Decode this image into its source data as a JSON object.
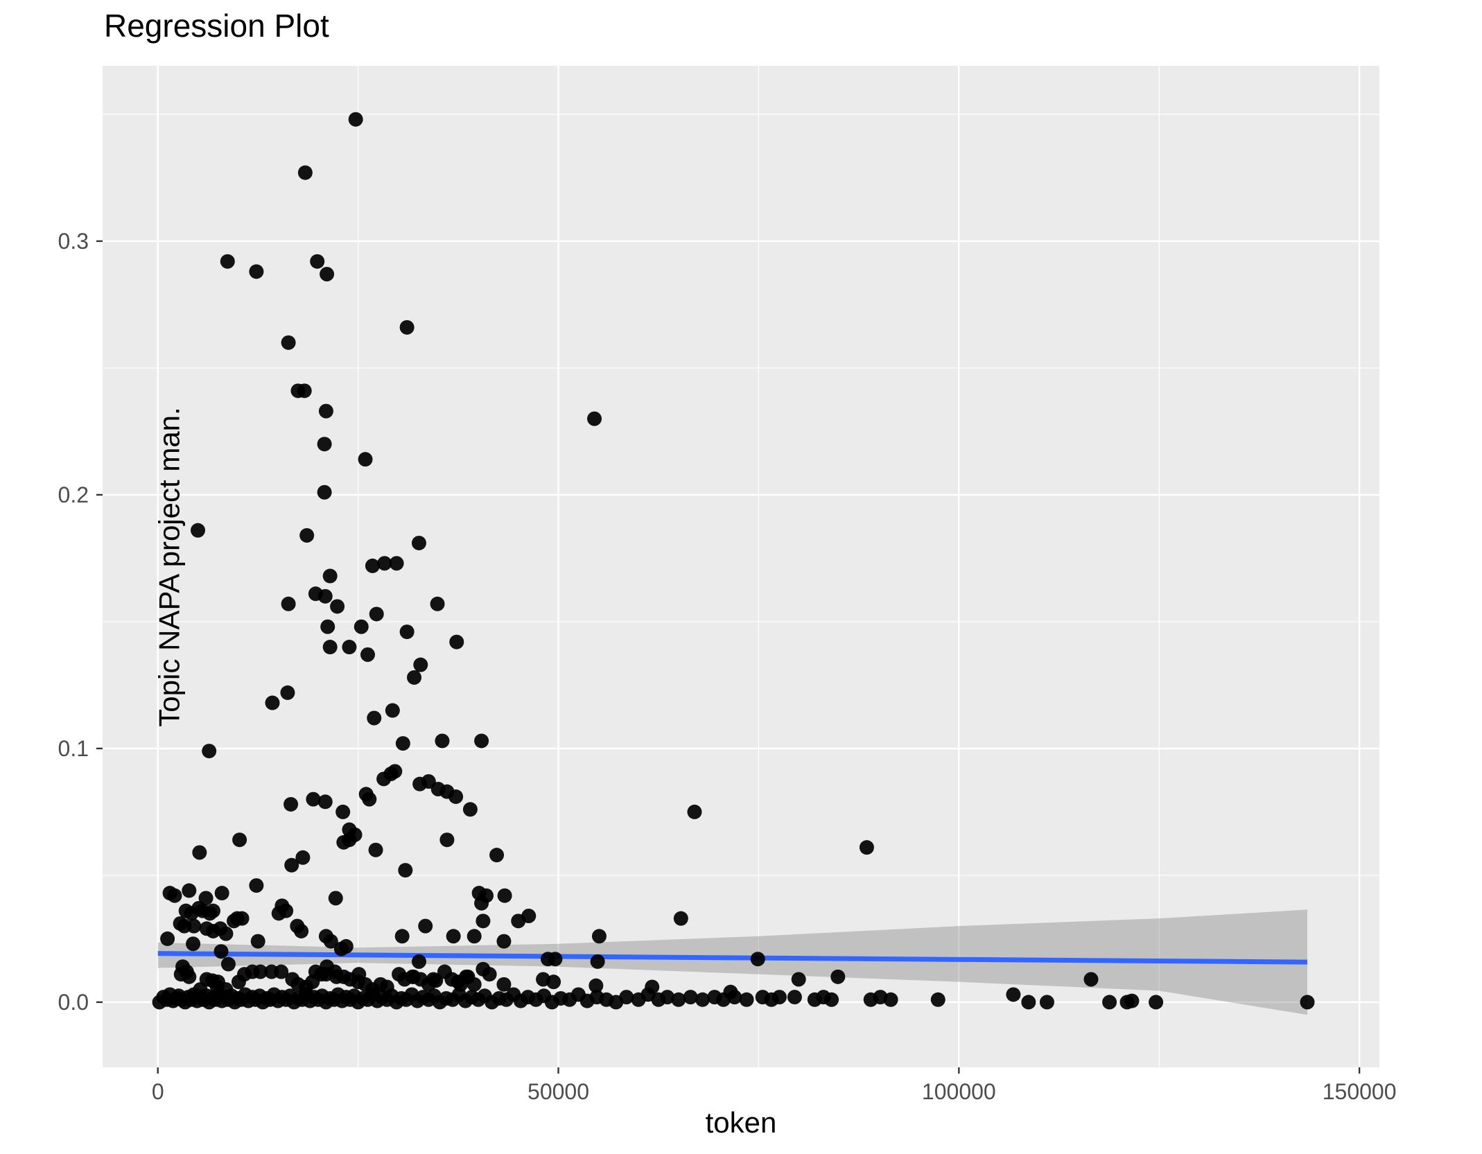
{
  "page": {
    "title": "Regression Plot"
  },
  "chart_data": {
    "type": "scatter",
    "title": "Regression Plot",
    "xlabel": "token",
    "ylabel": "Topic NAPA project man.",
    "x_tick_values": [
      0,
      50000,
      100000,
      150000
    ],
    "x_tick_labels": [
      "0",
      "50000",
      "100000",
      "150000"
    ],
    "x_minor_ticks": [
      25000,
      75000,
      125000
    ],
    "y_tick_values": [
      0.0,
      0.1,
      0.2,
      0.3
    ],
    "y_tick_labels": [
      "0.0",
      "0.1",
      "0.2",
      "0.3"
    ],
    "y_minor_ticks": [
      0.05,
      0.15,
      0.25,
      0.35
    ],
    "xlim": [
      -6900,
      152500
    ],
    "ylim": [
      -0.0257,
      0.3691
    ],
    "grid": true,
    "legend_position": "none",
    "colors": {
      "panel_background": "#EBEBEB",
      "grid_major": "#FFFFFF",
      "grid_minor": "#F5F5F5",
      "point": "#000000",
      "smooth_line": "#3366FF",
      "confidence_band": "rgba(125,125,125,0.38)",
      "tick_label": "#4D4D4D",
      "tick_mark": "#333333",
      "text": "#000000"
    },
    "regression_line": {
      "x": [
        0,
        143500
      ],
      "y": [
        0.0192,
        0.0158
      ]
    },
    "confidence_band": {
      "x": [
        0,
        25000,
        50000,
        75000,
        100000,
        125000,
        143500
      ],
      "upper": [
        0.0235,
        0.0215,
        0.023,
        0.026,
        0.03,
        0.033,
        0.0365
      ],
      "lower": [
        0.0135,
        0.0155,
        0.014,
        0.011,
        0.008,
        0.0045,
        -0.005
      ]
    },
    "points": [
      [
        24700,
        0.348
      ],
      [
        18400,
        0.327
      ],
      [
        8700,
        0.292
      ],
      [
        19900,
        0.292
      ],
      [
        12300,
        0.288
      ],
      [
        21100,
        0.287
      ],
      [
        31100,
        0.266
      ],
      [
        16300,
        0.26
      ],
      [
        17500,
        0.241
      ],
      [
        18300,
        0.241
      ],
      [
        21000,
        0.233
      ],
      [
        54500,
        0.23
      ],
      [
        20800,
        0.22
      ],
      [
        25900,
        0.214
      ],
      [
        20800,
        0.201
      ],
      [
        5000,
        0.186
      ],
      [
        18600,
        0.184
      ],
      [
        32600,
        0.181
      ],
      [
        28300,
        0.173
      ],
      [
        29800,
        0.173
      ],
      [
        26800,
        0.172
      ],
      [
        21500,
        0.168
      ],
      [
        19700,
        0.161
      ],
      [
        20900,
        0.16
      ],
      [
        16300,
        0.157
      ],
      [
        34900,
        0.157
      ],
      [
        22400,
        0.156
      ],
      [
        27300,
        0.153
      ],
      [
        21200,
        0.148
      ],
      [
        25400,
        0.148
      ],
      [
        31100,
        0.146
      ],
      [
        37300,
        0.142
      ],
      [
        23900,
        0.14
      ],
      [
        21500,
        0.14
      ],
      [
        26200,
        0.137
      ],
      [
        32800,
        0.133
      ],
      [
        32000,
        0.128
      ],
      [
        16200,
        0.122
      ],
      [
        14300,
        0.118
      ],
      [
        29300,
        0.115
      ],
      [
        27000,
        0.112
      ],
      [
        35500,
        0.103
      ],
      [
        30600,
        0.102
      ],
      [
        40400,
        0.103
      ],
      [
        6400,
        0.099
      ],
      [
        29600,
        0.091
      ],
      [
        29100,
        0.09
      ],
      [
        28200,
        0.088
      ],
      [
        33800,
        0.087
      ],
      [
        32700,
        0.086
      ],
      [
        35000,
        0.084
      ],
      [
        36100,
        0.083
      ],
      [
        37200,
        0.081
      ],
      [
        26000,
        0.082
      ],
      [
        26400,
        0.08
      ],
      [
        19400,
        0.08
      ],
      [
        20900,
        0.079
      ],
      [
        16600,
        0.078
      ],
      [
        39000,
        0.076
      ],
      [
        23100,
        0.075
      ],
      [
        67000,
        0.075
      ],
      [
        23900,
        0.068
      ],
      [
        24600,
        0.066
      ],
      [
        23900,
        0.064
      ],
      [
        23200,
        0.063
      ],
      [
        10200,
        0.064
      ],
      [
        36100,
        0.064
      ],
      [
        5200,
        0.059
      ],
      [
        27200,
        0.06
      ],
      [
        88500,
        0.061
      ],
      [
        42300,
        0.058
      ],
      [
        18100,
        0.057
      ],
      [
        16700,
        0.054
      ],
      [
        30900,
        0.052
      ],
      [
        1500,
        0.043
      ],
      [
        2100,
        0.042
      ],
      [
        3900,
        0.044
      ],
      [
        6000,
        0.041
      ],
      [
        8000,
        0.043
      ],
      [
        12300,
        0.046
      ],
      [
        3500,
        0.036
      ],
      [
        4200,
        0.035
      ],
      [
        5100,
        0.037
      ],
      [
        5600,
        0.036
      ],
      [
        6500,
        0.035
      ],
      [
        6900,
        0.036
      ],
      [
        9500,
        0.032
      ],
      [
        9900,
        0.033
      ],
      [
        10500,
        0.033
      ],
      [
        2800,
        0.031
      ],
      [
        3300,
        0.03
      ],
      [
        4500,
        0.03
      ],
      [
        6100,
        0.029
      ],
      [
        6900,
        0.028
      ],
      [
        7800,
        0.029
      ],
      [
        8500,
        0.027
      ],
      [
        15500,
        0.038
      ],
      [
        16000,
        0.036
      ],
      [
        15100,
        0.035
      ],
      [
        17400,
        0.03
      ],
      [
        17900,
        0.028
      ],
      [
        22200,
        0.041
      ],
      [
        40100,
        0.043
      ],
      [
        40400,
        0.039
      ],
      [
        41000,
        0.042
      ],
      [
        43300,
        0.042
      ],
      [
        45000,
        0.032
      ],
      [
        46300,
        0.034
      ],
      [
        65300,
        0.033
      ],
      [
        33400,
        0.03
      ],
      [
        40600,
        0.032
      ],
      [
        1200,
        0.025
      ],
      [
        4400,
        0.023
      ],
      [
        7900,
        0.02
      ],
      [
        12500,
        0.024
      ],
      [
        21000,
        0.026
      ],
      [
        21600,
        0.024
      ],
      [
        22900,
        0.021
      ],
      [
        23500,
        0.022
      ],
      [
        30500,
        0.026
      ],
      [
        36900,
        0.026
      ],
      [
        39500,
        0.026
      ],
      [
        32600,
        0.016
      ],
      [
        8800,
        0.015
      ],
      [
        43200,
        0.024
      ],
      [
        48700,
        0.017
      ],
      [
        49600,
        0.017
      ],
      [
        55100,
        0.026
      ],
      [
        54900,
        0.016
      ],
      [
        74900,
        0.017
      ],
      [
        2900,
        0.011
      ],
      [
        3100,
        0.014
      ],
      [
        3600,
        0.012
      ],
      [
        3900,
        0.01
      ],
      [
        5300,
        0.005
      ],
      [
        6100,
        0.009
      ],
      [
        6800,
        0.0085
      ],
      [
        7400,
        0.006
      ],
      [
        7500,
        0.008
      ],
      [
        8500,
        0.005
      ],
      [
        10100,
        0.008
      ],
      [
        10800,
        0.011
      ],
      [
        11800,
        0.012
      ],
      [
        12800,
        0.012
      ],
      [
        14200,
        0.012
      ],
      [
        15400,
        0.012
      ],
      [
        16800,
        0.009
      ],
      [
        17500,
        0.007
      ],
      [
        18500,
        0.006
      ],
      [
        19300,
        0.008
      ],
      [
        19700,
        0.012
      ],
      [
        20400,
        0.011
      ],
      [
        21000,
        0.011
      ],
      [
        21100,
        0.014
      ],
      [
        22100,
        0.012
      ],
      [
        22300,
        0.01
      ],
      [
        23200,
        0.01
      ],
      [
        24000,
        0.009
      ],
      [
        25000,
        0.008
      ],
      [
        25100,
        0.011
      ],
      [
        25900,
        0.007
      ],
      [
        26800,
        0.005
      ],
      [
        27800,
        0.007
      ],
      [
        28600,
        0.006
      ],
      [
        30100,
        0.011
      ],
      [
        30800,
        0.009
      ],
      [
        31800,
        0.01
      ],
      [
        31900,
        0.01
      ],
      [
        32800,
        0.009
      ],
      [
        33800,
        0.007
      ],
      [
        34400,
        0.009
      ],
      [
        34700,
        0.0085
      ],
      [
        35800,
        0.012
      ],
      [
        36700,
        0.009
      ],
      [
        37500,
        0.008
      ],
      [
        37800,
        0.007
      ],
      [
        38500,
        0.01
      ],
      [
        38700,
        0.01
      ],
      [
        39500,
        0.007
      ],
      [
        40600,
        0.013
      ],
      [
        41400,
        0.011
      ],
      [
        43200,
        0.007
      ],
      [
        48100,
        0.009
      ],
      [
        49400,
        0.008
      ],
      [
        54700,
        0.0065
      ],
      [
        61700,
        0.006
      ],
      [
        71500,
        0.004
      ],
      [
        80000,
        0.009
      ],
      [
        84900,
        0.01
      ],
      [
        116500,
        0.009
      ],
      [
        106800,
        0.003
      ],
      [
        58500,
        0.002
      ],
      [
        60000,
        0.001
      ],
      [
        61200,
        0.003
      ],
      [
        62500,
        0.001
      ],
      [
        63600,
        0.002
      ],
      [
        65000,
        0.001
      ],
      [
        66500,
        0.002
      ],
      [
        68000,
        0.001
      ],
      [
        69500,
        0.002
      ],
      [
        70600,
        0.001
      ],
      [
        72000,
        0.002
      ],
      [
        73500,
        0.001
      ],
      [
        75500,
        0.002
      ],
      [
        76600,
        0.001
      ],
      [
        77600,
        0.002
      ],
      [
        79500,
        0.002
      ],
      [
        82000,
        0.001
      ],
      [
        83100,
        0.002
      ],
      [
        84100,
        0.001
      ],
      [
        89000,
        0.001
      ],
      [
        90200,
        0.002
      ],
      [
        91500,
        0.001
      ],
      [
        97400,
        0.001
      ],
      [
        108700,
        0.0
      ],
      [
        111000,
        0.0
      ],
      [
        118800,
        0.0
      ],
      [
        121000,
        0.0
      ],
      [
        121600,
        0.0005
      ],
      [
        124600,
        0.0
      ],
      [
        143500,
        0.0
      ],
      [
        200,
        0.0
      ],
      [
        700,
        0.002
      ],
      [
        1100,
        0.001
      ],
      [
        1500,
        0.003
      ],
      [
        1900,
        0.0005
      ],
      [
        2300,
        0.0015
      ],
      [
        2600,
        0.0025
      ],
      [
        3000,
        0.001
      ],
      [
        3400,
        0.0
      ],
      [
        3800,
        0.002
      ],
      [
        4100,
        0.001
      ],
      [
        4500,
        0.003
      ],
      [
        4900,
        0.0005
      ],
      [
        5300,
        0.002
      ],
      [
        5700,
        0.001
      ],
      [
        6100,
        0.0025
      ],
      [
        6400,
        0.0
      ],
      [
        6800,
        0.0015
      ],
      [
        7200,
        0.001
      ],
      [
        7600,
        0.003
      ],
      [
        8000,
        0.0005
      ],
      [
        8400,
        0.002
      ],
      [
        8800,
        0.001
      ],
      [
        9200,
        0.0025
      ],
      [
        9600,
        0.0
      ],
      [
        10000,
        0.0015
      ],
      [
        10400,
        0.001
      ],
      [
        10900,
        0.003
      ],
      [
        11300,
        0.0005
      ],
      [
        11800,
        0.002
      ],
      [
        12200,
        0.001
      ],
      [
        12700,
        0.0025
      ],
      [
        13100,
        0.0
      ],
      [
        13600,
        0.0015
      ],
      [
        14000,
        0.001
      ],
      [
        14500,
        0.003
      ],
      [
        15000,
        0.0005
      ],
      [
        15500,
        0.002
      ],
      [
        16000,
        0.001
      ],
      [
        16500,
        0.0025
      ],
      [
        17000,
        0.0
      ],
      [
        17500,
        0.0015
      ],
      [
        18000,
        0.001
      ],
      [
        18500,
        0.003
      ],
      [
        19000,
        0.0005
      ],
      [
        19500,
        0.002
      ],
      [
        20000,
        0.001
      ],
      [
        20500,
        0.0025
      ],
      [
        21000,
        0.0
      ],
      [
        21500,
        0.0015
      ],
      [
        22000,
        0.001
      ],
      [
        22500,
        0.003
      ],
      [
        23000,
        0.0005
      ],
      [
        23500,
        0.002
      ],
      [
        24000,
        0.001
      ],
      [
        24500,
        0.0025
      ],
      [
        25000,
        0.0
      ],
      [
        25600,
        0.0015
      ],
      [
        26200,
        0.001
      ],
      [
        26800,
        0.003
      ],
      [
        27400,
        0.0005
      ],
      [
        28000,
        0.002
      ],
      [
        28600,
        0.001
      ],
      [
        29200,
        0.0025
      ],
      [
        29800,
        0.0
      ],
      [
        30400,
        0.0015
      ],
      [
        31000,
        0.001
      ],
      [
        31700,
        0.003
      ],
      [
        32400,
        0.0005
      ],
      [
        33100,
        0.002
      ],
      [
        33800,
        0.001
      ],
      [
        34500,
        0.0025
      ],
      [
        35200,
        0.0
      ],
      [
        36000,
        0.0015
      ],
      [
        36800,
        0.001
      ],
      [
        37600,
        0.003
      ],
      [
        38400,
        0.0005
      ],
      [
        39200,
        0.002
      ],
      [
        40000,
        0.001
      ],
      [
        40800,
        0.0025
      ],
      [
        41700,
        0.0
      ],
      [
        42600,
        0.0015
      ],
      [
        43500,
        0.001
      ],
      [
        44400,
        0.003
      ],
      [
        45300,
        0.0005
      ],
      [
        46200,
        0.002
      ],
      [
        47200,
        0.001
      ],
      [
        48200,
        0.0025
      ],
      [
        49200,
        0.0
      ],
      [
        50300,
        0.0015
      ],
      [
        51400,
        0.001
      ],
      [
        52500,
        0.003
      ],
      [
        53600,
        0.0005
      ],
      [
        54800,
        0.002
      ],
      [
        56000,
        0.001
      ],
      [
        57200,
        0.0
      ]
    ]
  }
}
